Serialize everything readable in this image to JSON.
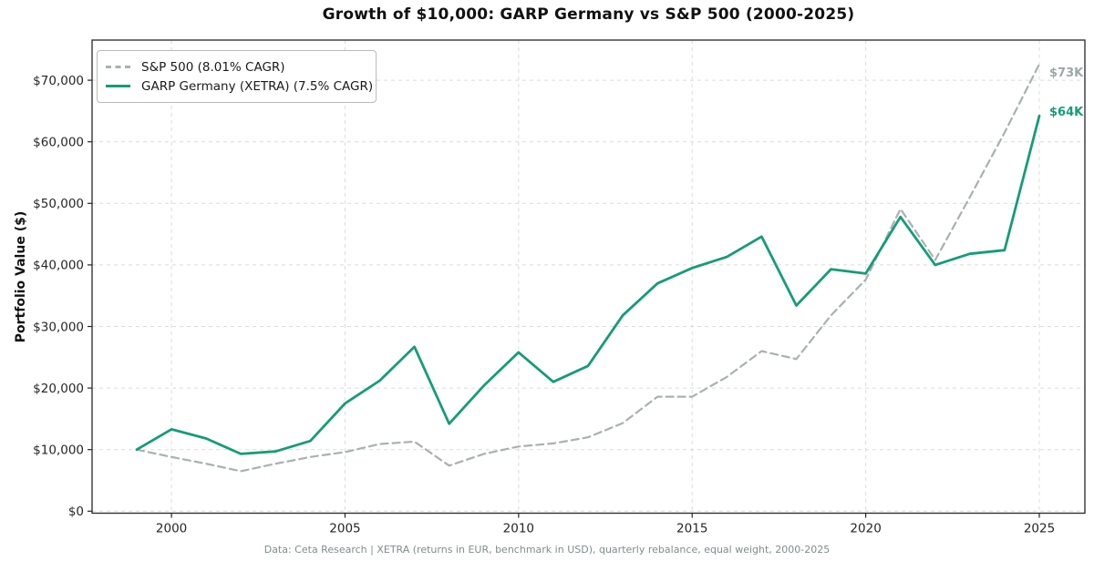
{
  "page": {
    "footer": "Data: Ceta Research | XETRA (returns in EUR, benchmark in USD), quarterly rebalance, equal weight, 2000-2025"
  },
  "chart_data": {
    "type": "line",
    "title": "Growth of $10,000: GARP Germany vs S&P 500 (2000-2025)",
    "xlabel": "",
    "ylabel": "Portfolio Value ($)",
    "x": [
      1999,
      2000,
      2001,
      2002,
      2003,
      2004,
      2005,
      2006,
      2007,
      2008,
      2009,
      2010,
      2011,
      2012,
      2013,
      2014,
      2015,
      2016,
      2017,
      2018,
      2019,
      2020,
      2021,
      2022,
      2023,
      2024,
      2025
    ],
    "series": [
      {
        "name": "S&P 500 (8.01% CAGR)",
        "style": "dashed",
        "color": "#a9b1b1",
        "end_label": "$73K",
        "values": [
          10000,
          8800,
          7700,
          6500,
          7700,
          8800,
          9600,
          10900,
          11300,
          7400,
          9300,
          10500,
          11000,
          12000,
          14300,
          18600,
          18600,
          21800,
          26000,
          24700,
          31800,
          37600,
          49100,
          40800,
          51000,
          61500,
          72600
        ]
      },
      {
        "name": "GARP Germany (XETRA) (7.5% CAGR)",
        "style": "solid",
        "color": "#169c79",
        "end_label": "$64K",
        "values": [
          10000,
          13300,
          11800,
          9300,
          9700,
          11400,
          17500,
          21200,
          26700,
          14200,
          20400,
          25800,
          21000,
          23600,
          31800,
          37000,
          39500,
          41300,
          44600,
          33400,
          39300,
          38600,
          47800,
          40000,
          41800,
          42400,
          64200
        ]
      }
    ],
    "x_ticks": [
      {
        "v": 2000,
        "label": "2000"
      },
      {
        "v": 2005,
        "label": "2005"
      },
      {
        "v": 2010,
        "label": "2010"
      },
      {
        "v": 2015,
        "label": "2015"
      },
      {
        "v": 2020,
        "label": "2020"
      },
      {
        "v": 2025,
        "label": "2025"
      }
    ],
    "y_ticks": [
      {
        "v": 0,
        "label": "$0"
      },
      {
        "v": 10000,
        "label": "$10,000"
      },
      {
        "v": 20000,
        "label": "$20,000"
      },
      {
        "v": 30000,
        "label": "$30,000"
      },
      {
        "v": 40000,
        "label": "$40,000"
      },
      {
        "v": 50000,
        "label": "$50,000"
      },
      {
        "v": 60000,
        "label": "$60,000"
      },
      {
        "v": 70000,
        "label": "$70,000"
      }
    ],
    "xlim": [
      1997.71,
      2026.31
    ],
    "ylim": [
      -300,
      76500
    ],
    "grid": "dashed",
    "legend_position": "upper-left"
  }
}
